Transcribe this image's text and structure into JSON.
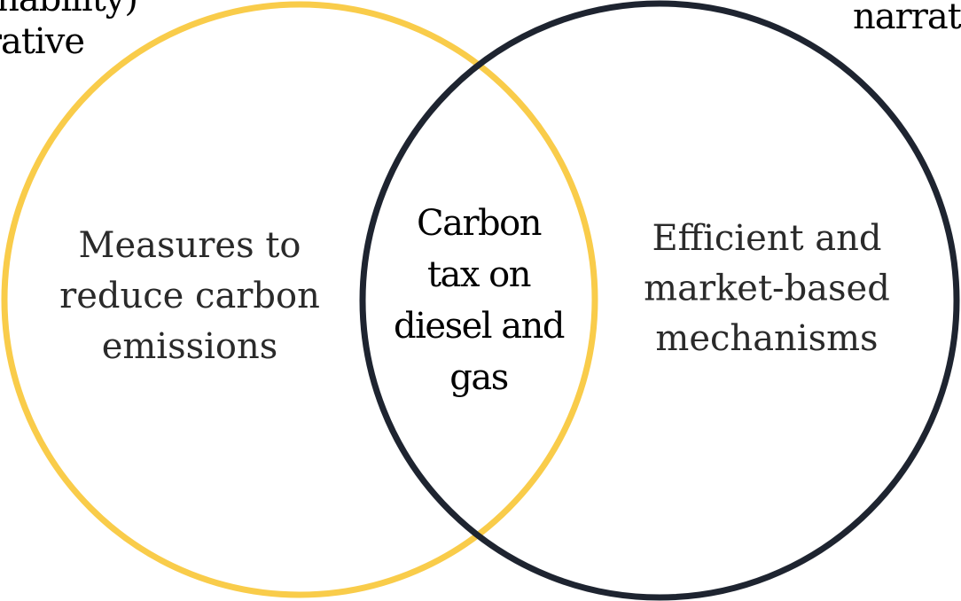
{
  "edge_labels": {
    "top_left": [
      "nability)",
      "rative"
    ],
    "top_right": [
      "narrati"
    ]
  },
  "sets": {
    "left": {
      "lines": [
        "Measures to",
        "reduce carbon",
        "emissions"
      ]
    },
    "overlap": {
      "lines": [
        "Carbon",
        "tax on",
        "diesel and",
        "gas"
      ]
    },
    "right": {
      "lines": [
        "Efficient and",
        "market-based",
        "mechanisms"
      ]
    }
  }
}
